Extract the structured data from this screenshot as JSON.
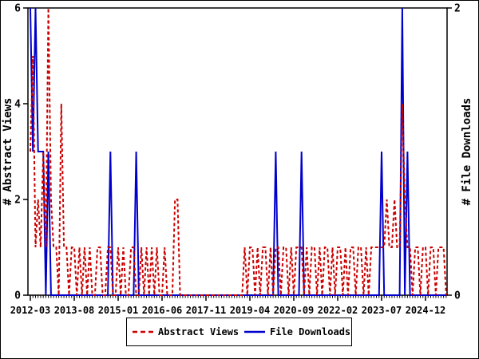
{
  "figure": {
    "left_axis_title": "# Abstract Views",
    "right_axis_title": "# File Downloads",
    "legend": {
      "series1_label": "Abstract Views",
      "series2_label": "File Downloads"
    },
    "colors": {
      "abstract_views": "#cc0000",
      "file_downloads": "#0000cc",
      "axis": "#000000",
      "background": "#ffffff"
    }
  },
  "chart_data": {
    "type": "line",
    "title": "",
    "x_axis": {
      "start_month": "2012-03",
      "months_total": 162,
      "major_tick_every_months": 17,
      "tick_labels": [
        "2012-03",
        "2013-08",
        "2015-01",
        "2016-06",
        "2017-11",
        "2019-04",
        "2020-09",
        "2022-02",
        "2023-07",
        "2024-12"
      ]
    },
    "y_left": {
      "label": "# Abstract Views",
      "range": [
        0,
        6
      ],
      "ticks": [
        "0",
        "2",
        "4",
        "6"
      ],
      "tick_values": [
        0,
        2,
        4,
        6
      ]
    },
    "y_right": {
      "label": "# File Downloads",
      "range": [
        0,
        2
      ],
      "ticks": [
        "0",
        "2"
      ],
      "tick_values": [
        0,
        2
      ]
    },
    "grid": false,
    "legend_position": "bottom-center",
    "series": [
      {
        "name": "Abstract Views",
        "axis": "left",
        "style": "dashed",
        "color": "#cc0000",
        "values": [
          3,
          5,
          1,
          2,
          1,
          3,
          1,
          6,
          2,
          1,
          1,
          0,
          4,
          1,
          1,
          0,
          1,
          1,
          0,
          1,
          0,
          1,
          0,
          1,
          0,
          0,
          1,
          1,
          0,
          0,
          1,
          1,
          0,
          0,
          1,
          0,
          1,
          0,
          0,
          1,
          1,
          0,
          0,
          1,
          0,
          1,
          0,
          1,
          0,
          1,
          0,
          0,
          1,
          0,
          0,
          0,
          2,
          2,
          0,
          0,
          0,
          0,
          0,
          0,
          0,
          0,
          0,
          0,
          0,
          0,
          0,
          0,
          0,
          0,
          0,
          0,
          0,
          0,
          0,
          0,
          0,
          0,
          0,
          1,
          0,
          1,
          1,
          0,
          1,
          0,
          1,
          1,
          0,
          1,
          0,
          1,
          1,
          0,
          1,
          1,
          0,
          1,
          0,
          1,
          1,
          1,
          0,
          1,
          0,
          1,
          1,
          0,
          1,
          0,
          1,
          1,
          0,
          1,
          0,
          1,
          1,
          0,
          1,
          0,
          1,
          1,
          0,
          1,
          1,
          0,
          1,
          0,
          1,
          1,
          1,
          1,
          1,
          1,
          2,
          1,
          1,
          2,
          1,
          1,
          4,
          2,
          1,
          1,
          0,
          1,
          1,
          0,
          1,
          1,
          0,
          1,
          1,
          0,
          1,
          1,
          1,
          0
        ]
      },
      {
        "name": "File Downloads",
        "axis": "right",
        "style": "solid",
        "color": "#0000cc",
        "values": [
          2,
          1,
          2,
          1,
          1,
          1,
          0,
          1,
          0,
          0,
          0,
          0,
          0,
          0,
          0,
          0,
          0,
          0,
          0,
          0,
          0,
          0,
          0,
          0,
          0,
          0,
          0,
          0,
          0,
          0,
          0,
          1,
          0,
          0,
          0,
          0,
          0,
          0,
          0,
          0,
          0,
          1,
          0,
          0,
          0,
          0,
          0,
          0,
          0,
          0,
          0,
          0,
          0,
          0,
          0,
          0,
          0,
          0,
          0,
          0,
          0,
          0,
          0,
          0,
          0,
          0,
          0,
          0,
          0,
          0,
          0,
          0,
          0,
          0,
          0,
          0,
          0,
          0,
          0,
          0,
          0,
          0,
          0,
          0,
          0,
          0,
          0,
          0,
          0,
          0,
          0,
          0,
          0,
          0,
          0,
          1,
          0,
          0,
          0,
          0,
          0,
          0,
          0,
          0,
          0,
          1,
          0,
          0,
          0,
          0,
          0,
          0,
          0,
          0,
          0,
          0,
          0,
          0,
          0,
          0,
          0,
          0,
          0,
          0,
          0,
          0,
          0,
          0,
          0,
          0,
          0,
          0,
          0,
          0,
          0,
          0,
          1,
          0,
          0,
          0,
          0,
          0,
          0,
          0,
          2,
          0,
          1,
          0,
          0,
          0,
          0,
          0,
          0,
          0,
          0,
          0,
          0,
          0,
          0,
          0,
          0,
          0
        ]
      }
    ]
  }
}
